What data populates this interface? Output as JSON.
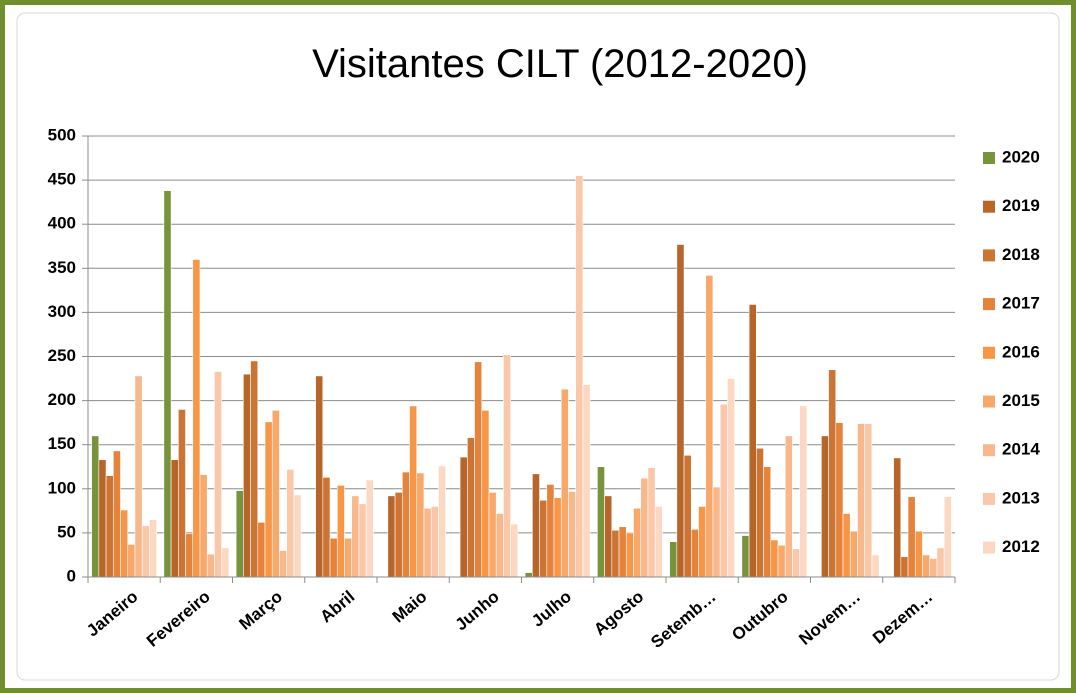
{
  "chart_data": {
    "type": "bar",
    "title": "Visitantes CILT (2012-2020)",
    "categories": [
      "Janeiro",
      "Fevereiro",
      "Março",
      "Abril",
      "Maio",
      "Junho",
      "Julho",
      "Agosto",
      "Setemb…",
      "Outubro",
      "Novem…",
      "Dezem…"
    ],
    "series": [
      {
        "name": "2020",
        "color": "#77933c",
        "values": [
          160,
          438,
          98,
          0,
          0,
          0,
          5,
          125,
          40,
          47,
          0,
          0
        ]
      },
      {
        "name": "2019",
        "color": "#b8652a",
        "values": [
          133,
          133,
          230,
          228,
          92,
          136,
          117,
          92,
          377,
          309,
          160,
          135
        ]
      },
      {
        "name": "2018",
        "color": "#cc7434",
        "values": [
          115,
          190,
          245,
          113,
          96,
          158,
          87,
          53,
          138,
          146,
          235,
          23
        ]
      },
      {
        "name": "2017",
        "color": "#e5833c",
        "values": [
          143,
          49,
          62,
          44,
          119,
          244,
          105,
          57,
          54,
          125,
          175,
          91
        ]
      },
      {
        "name": "2016",
        "color": "#f79646",
        "values": [
          76,
          360,
          176,
          104,
          194,
          189,
          90,
          50,
          80,
          42,
          72,
          52
        ]
      },
      {
        "name": "2015",
        "color": "#f8a86a",
        "values": [
          37,
          116,
          189,
          44,
          118,
          96,
          213,
          78,
          342,
          36,
          52,
          25
        ]
      },
      {
        "name": "2014",
        "color": "#f9b88c",
        "values": [
          228,
          26,
          30,
          92,
          78,
          72,
          97,
          112,
          102,
          160,
          174,
          21
        ]
      },
      {
        "name": "2013",
        "color": "#fac7a8",
        "values": [
          58,
          233,
          122,
          83,
          80,
          252,
          455,
          124,
          196,
          32,
          174,
          33
        ]
      },
      {
        "name": "2012",
        "color": "#fcd8c3",
        "values": [
          65,
          33,
          93,
          110,
          126,
          60,
          218,
          80,
          225,
          194,
          25,
          91
        ]
      }
    ],
    "ylim": [
      0,
      500
    ],
    "yticks": [
      0,
      50,
      100,
      150,
      200,
      250,
      300,
      350,
      400,
      450,
      500
    ],
    "grid": true,
    "legend": "right"
  }
}
